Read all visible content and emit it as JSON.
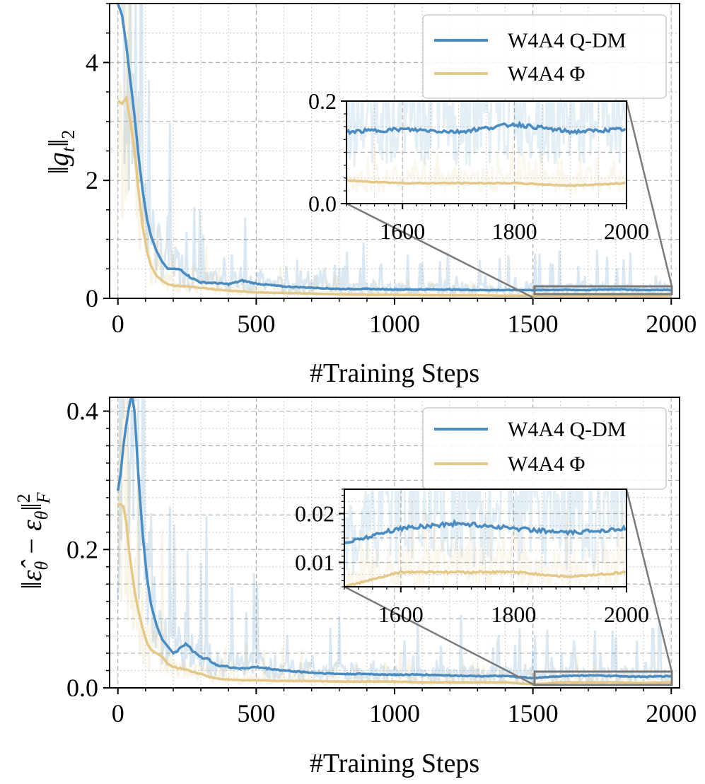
{
  "chart_data": [
    {
      "type": "line",
      "xlabel": "#Training Steps",
      "ylabel": "‖g_t‖_2",
      "xlim": [
        -30,
        2030
      ],
      "ylim": [
        0,
        5
      ],
      "x_ticks": [
        "0",
        "500",
        "1000",
        "1500",
        "2000"
      ],
      "y_ticks": [
        "0",
        "2",
        "4"
      ],
      "grid": true,
      "legend_position": "top-right",
      "series": [
        {
          "name": "W4A4 Q-DM",
          "color": "#4b8bbe",
          "x": [
            0,
            15,
            30,
            45,
            60,
            75,
            90,
            105,
            120,
            140,
            160,
            180,
            200,
            230,
            260,
            300,
            350,
            400,
            450,
            500,
            600,
            700,
            800,
            900,
            1000,
            1100,
            1200,
            1300,
            1400,
            1500,
            1600,
            1700,
            1800,
            1900,
            2000
          ],
          "values": [
            5.0,
            4.8,
            4.3,
            3.7,
            3.1,
            2.4,
            1.8,
            1.35,
            1.05,
            0.8,
            0.62,
            0.5,
            0.5,
            0.48,
            0.36,
            0.27,
            0.26,
            0.24,
            0.3,
            0.25,
            0.2,
            0.18,
            0.16,
            0.16,
            0.15,
            0.15,
            0.15,
            0.14,
            0.14,
            0.14,
            0.145,
            0.14,
            0.155,
            0.14,
            0.145
          ]
        },
        {
          "name": "W4A4 Φ",
          "color": "#e3c88a",
          "x": [
            0,
            15,
            30,
            45,
            60,
            75,
            90,
            105,
            120,
            140,
            160,
            180,
            200,
            230,
            260,
            300,
            350,
            400,
            450,
            500,
            600,
            700,
            800,
            900,
            1000,
            1100,
            1200,
            1300,
            1400,
            1500,
            1600,
            1700,
            1800,
            1900,
            2000
          ],
          "values": [
            3.35,
            3.3,
            3.4,
            3.0,
            2.5,
            1.8,
            1.2,
            0.8,
            0.55,
            0.38,
            0.3,
            0.24,
            0.22,
            0.2,
            0.2,
            0.18,
            0.15,
            0.13,
            0.12,
            0.1,
            0.09,
            0.08,
            0.07,
            0.06,
            0.06,
            0.055,
            0.05,
            0.05,
            0.045,
            0.045,
            0.04,
            0.04,
            0.04,
            0.035,
            0.04
          ]
        }
      ],
      "inset": {
        "xlim": [
          1500,
          2000
        ],
        "ylim": [
          0.0,
          0.2
        ],
        "x_ticks": [
          "1600",
          "1800",
          "2000"
        ],
        "y_ticks": [
          "0.0",
          "0.2"
        ]
      }
    },
    {
      "type": "line",
      "xlabel": "#Training Steps",
      "ylabel": "‖ε̂_θ − ε_θ‖²_F",
      "xlim": [
        -30,
        2030
      ],
      "ylim": [
        0,
        0.42
      ],
      "x_ticks": [
        "0",
        "500",
        "1000",
        "1500",
        "2000"
      ],
      "y_ticks": [
        "0.0",
        "0.2",
        "0.4"
      ],
      "grid": true,
      "legend_position": "top-right",
      "series": [
        {
          "name": "W4A4 Q-DM",
          "color": "#4b8bbe",
          "x": [
            0,
            10,
            20,
            30,
            40,
            50,
            60,
            75,
            90,
            105,
            120,
            140,
            160,
            180,
            200,
            220,
            240,
            260,
            280,
            300,
            330,
            360,
            400,
            450,
            500,
            600,
            700,
            800,
            900,
            1000,
            1100,
            1200,
            1300,
            1400,
            1500,
            1600,
            1700,
            1800,
            1900,
            2000
          ],
          "values": [
            0.285,
            0.31,
            0.35,
            0.38,
            0.405,
            0.425,
            0.4,
            0.3,
            0.22,
            0.16,
            0.12,
            0.09,
            0.07,
            0.06,
            0.05,
            0.055,
            0.063,
            0.058,
            0.05,
            0.045,
            0.04,
            0.033,
            0.03,
            0.028,
            0.03,
            0.025,
            0.022,
            0.02,
            0.02,
            0.019,
            0.019,
            0.018,
            0.017,
            0.017,
            0.014,
            0.017,
            0.018,
            0.017,
            0.016,
            0.017
          ]
        },
        {
          "name": "W4A4 Φ",
          "color": "#e3c88a",
          "x": [
            0,
            10,
            20,
            30,
            40,
            50,
            60,
            75,
            90,
            105,
            120,
            140,
            160,
            180,
            200,
            220,
            240,
            260,
            280,
            300,
            330,
            360,
            400,
            450,
            500,
            600,
            700,
            800,
            900,
            1000,
            1100,
            1200,
            1300,
            1400,
            1500,
            1600,
            1700,
            1800,
            1900,
            2000
          ],
          "values": [
            0.265,
            0.265,
            0.262,
            0.24,
            0.2,
            0.17,
            0.14,
            0.11,
            0.085,
            0.065,
            0.055,
            0.05,
            0.045,
            0.035,
            0.03,
            0.028,
            0.027,
            0.024,
            0.022,
            0.02,
            0.016,
            0.013,
            0.012,
            0.011,
            0.011,
            0.01,
            0.01,
            0.009,
            0.009,
            0.009,
            0.008,
            0.008,
            0.008,
            0.008,
            0.005,
            0.008,
            0.008,
            0.008,
            0.007,
            0.008
          ]
        }
      ],
      "inset": {
        "xlim": [
          1500,
          2000
        ],
        "ylim": [
          0.005,
          0.025
        ],
        "x_ticks": [
          "1600",
          "1800",
          "2000"
        ],
        "y_ticks": [
          "0.01",
          "0.02"
        ]
      }
    }
  ]
}
